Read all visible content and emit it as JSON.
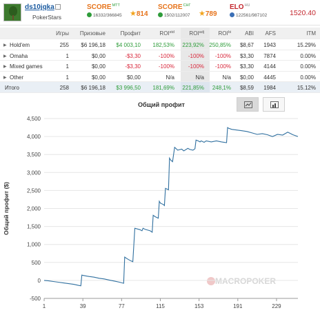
{
  "header": {
    "username": "ds10jqka",
    "room": "PokerStars",
    "score_mtt": {
      "label": "SCORE",
      "tag": "МТТ",
      "rank": "16332/366845",
      "value": "814"
    },
    "score_cis": {
      "label": "SCORE",
      "tag": "СНГ",
      "rank": "1502/112007",
      "value": "789"
    },
    "elo": {
      "label": "ELO",
      "tag": "HU",
      "rank": "122561/987102",
      "value": "1520.40"
    }
  },
  "table": {
    "columns": [
      "",
      "Игры",
      "Призовые",
      "Профит",
      "ROI",
      "ROI",
      "ROI",
      "ABI",
      "AFS",
      "ITM"
    ],
    "roi_sups": [
      "std",
      "adj",
      "bi"
    ],
    "rows": [
      {
        "name": "Hold'em",
        "games": "255",
        "prize": "$6 196,18",
        "profit": "$4 003,10",
        "roi_std": "182,53%",
        "roi_adj": "223,92%",
        "roi_bi": "250,85%",
        "abi": "$8,67",
        "afs": "1943",
        "itm": "15.29%",
        "sign": "pos"
      },
      {
        "name": "Omaha",
        "games": "1",
        "prize": "$0,00",
        "profit": "-$3,30",
        "roi_std": "-100%",
        "roi_adj": "-100%",
        "roi_bi": "-100%",
        "abi": "$3,30",
        "afs": "7874",
        "itm": "0.00%",
        "sign": "neg"
      },
      {
        "name": "Mixed games",
        "games": "1",
        "prize": "$0,00",
        "profit": "-$3,30",
        "roi_std": "-100%",
        "roi_adj": "-100%",
        "roi_bi": "-100%",
        "abi": "$3,30",
        "afs": "4144",
        "itm": "0.00%",
        "sign": "neg"
      },
      {
        "name": "Other",
        "games": "1",
        "prize": "$0,00",
        "profit": "$0,00",
        "roi_std": "N/a",
        "roi_adj": "N/a",
        "roi_bi": "N/a",
        "abi": "$0,00",
        "afs": "4445",
        "itm": "0.00%",
        "sign": "zero"
      }
    ],
    "total": {
      "name": "Итого",
      "games": "258",
      "prize": "$6 196,18",
      "profit": "$3 996,50",
      "roi_std": "181,69%",
      "roi_adj": "221,85%",
      "roi_bi": "248,1%",
      "abi": "$8,59",
      "afs": "1984",
      "itm": "15.12%"
    }
  },
  "chart_title": "Общий профит",
  "watermark": "MACROPOKER",
  "chart_data": {
    "type": "line",
    "title": "Общий профит",
    "ylabel": "Общий профит ($)",
    "xlabel": "",
    "xlim": [
      1,
      250
    ],
    "ylim": [
      -500,
      4500
    ],
    "x_ticks": [
      1,
      39,
      77,
      115,
      153,
      191,
      229
    ],
    "y_ticks": [
      -500,
      0,
      500,
      1000,
      1500,
      2000,
      2500,
      3000,
      3500,
      4000,
      4500
    ],
    "y_tick_labels": [
      "-500",
      "0",
      "500",
      "1,000",
      "1,500",
      "2,000",
      "2,500",
      "3,000",
      "3,500",
      "4,000",
      "4,500"
    ],
    "grid": "y",
    "series": [
      {
        "x": [
          1,
          5,
          10,
          15,
          20,
          25,
          30,
          35,
          37,
          38,
          39,
          45,
          50,
          55,
          60,
          65,
          70,
          75,
          79,
          80,
          82,
          85,
          88,
          90,
          95,
          97,
          98,
          100,
          105,
          107,
          108,
          110,
          113,
          114,
          115,
          118,
          119,
          120,
          123,
          124,
          125,
          127,
          129,
          131,
          132,
          136,
          138,
          142,
          144,
          147,
          149,
          150,
          152,
          154,
          155,
          158,
          160,
          165,
          170,
          175,
          180,
          181,
          182,
          185,
          190,
          195,
          200,
          205,
          210,
          215,
          220,
          225,
          230,
          235,
          240,
          245,
          250
        ],
        "y": [
          0,
          -10,
          -30,
          -50,
          -70,
          -90,
          -110,
          -140,
          -150,
          150,
          140,
          110,
          90,
          60,
          40,
          10,
          -20,
          -50,
          -80,
          650,
          610,
          560,
          520,
          1450,
          1410,
          1380,
          1450,
          1420,
          1380,
          1340,
          1810,
          1770,
          1730,
          2200,
          2150,
          2110,
          2080,
          2560,
          2520,
          3400,
          3350,
          3300,
          3700,
          3650,
          3620,
          3650,
          3600,
          3670,
          3640,
          3620,
          3660,
          3900,
          3880,
          3850,
          3880,
          3840,
          3880,
          3850,
          3880,
          3850,
          3830,
          4250,
          4230,
          4200,
          4180,
          4160,
          4140,
          4100,
          4060,
          4080,
          4050,
          4000,
          4060,
          4040,
          4120,
          4050,
          4000
        ]
      }
    ]
  }
}
